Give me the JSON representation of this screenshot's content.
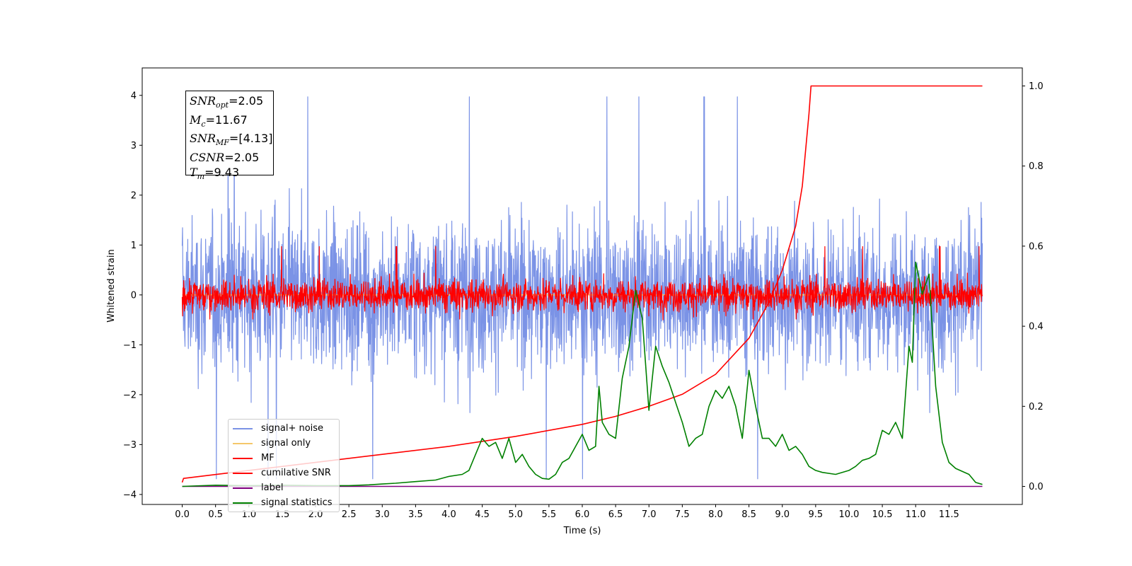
{
  "chart_data": {
    "type": "line",
    "xlabel": "Time (s)",
    "ylabel": "Whitened strain",
    "xlim": [
      -0.6,
      12.6
    ],
    "ylim_left": [
      -4.2,
      4.55
    ],
    "ylim_right": [
      -0.045,
      1.045
    ],
    "x_ticks": [
      "0.0",
      "0.5",
      "1.0",
      "1.5",
      "2.0",
      "2.5",
      "3.0",
      "3.5",
      "4.0",
      "4.5",
      "5.0",
      "5.5",
      "6.0",
      "6.5",
      "7.0",
      "7.5",
      "8.0",
      "8.5",
      "9.0",
      "9.5",
      "10.0",
      "10.5",
      "11.0",
      "11.5"
    ],
    "y_ticks_left": [
      "4",
      "3",
      "2",
      "1",
      "0",
      "−1",
      "−2",
      "−3",
      "−4"
    ],
    "y_ticks_right": [
      "1.0",
      "0.8",
      "0.6",
      "0.4",
      "0.2",
      "0.0"
    ],
    "annotations": [
      {
        "sym": "SNR",
        "sub": "opt",
        "val": "=2.05"
      },
      {
        "sym": "M",
        "sub": "c",
        "val": "=11.67"
      },
      {
        "sym": "SNR",
        "sub": "MF",
        "val": "=[4.13]"
      },
      {
        "sym": "CSNR",
        "sub": "",
        "val": "=2.05"
      },
      {
        "sym": "T",
        "sub": "m",
        "val": "=9.43"
      }
    ],
    "legend": {
      "placement": "lower-left",
      "entries": [
        {
          "name": "signal+ noise",
          "color": "#7b93e6"
        },
        {
          "name": "signal only",
          "color": "#f5c76a"
        },
        {
          "name": "MF",
          "color": "#ff0000"
        },
        {
          "name": "cumilative SNR",
          "color": "#ff0000"
        },
        {
          "name": "label",
          "color": "#800080"
        },
        {
          "name": "signal statistics",
          "color": "#008000"
        }
      ]
    },
    "series": [
      {
        "name": "signal+ noise",
        "axis": "left",
        "color": "#7b93e6",
        "kind": "noise",
        "x_range": [
          0.0,
          12.0
        ],
        "y_range": [
          -3.8,
          4.18
        ],
        "typical_amplitude": 1.9
      },
      {
        "name": "signal only",
        "axis": "left",
        "color": "#f5c76a",
        "x": [
          0.0,
          12.0
        ],
        "y": [
          0.0,
          0.0
        ]
      },
      {
        "name": "MF",
        "axis": "left",
        "color": "#ff0000",
        "kind": "noise",
        "x_range": [
          0.0,
          12.0
        ],
        "y_range": [
          -0.5,
          1.02
        ],
        "typical_amplitude": 0.42
      },
      {
        "name": "cumilative SNR",
        "axis": "right",
        "color": "#ff0000",
        "x": [
          0.0,
          0.02,
          1.0,
          2.0,
          3.0,
          4.0,
          5.0,
          6.0,
          6.5,
          7.0,
          7.5,
          8.0,
          8.5,
          8.8,
          9.0,
          9.2,
          9.3,
          9.4,
          9.43,
          12.0
        ],
        "y": [
          0.01,
          0.02,
          0.04,
          0.06,
          0.08,
          0.1,
          0.125,
          0.155,
          0.175,
          0.2,
          0.23,
          0.28,
          0.37,
          0.46,
          0.54,
          0.65,
          0.75,
          0.93,
          1.0,
          1.0
        ]
      },
      {
        "name": "label",
        "axis": "right",
        "color": "#800080",
        "x": [
          0.0,
          12.0
        ],
        "y": [
          0.0,
          0.0
        ]
      },
      {
        "name": "signal statistics",
        "axis": "right",
        "color": "#008000",
        "x": [
          0.0,
          0.5,
          1.0,
          1.5,
          2.0,
          2.5,
          2.8,
          3.0,
          3.2,
          3.5,
          3.8,
          4.0,
          4.2,
          4.3,
          4.4,
          4.5,
          4.6,
          4.7,
          4.8,
          4.9,
          5.0,
          5.1,
          5.2,
          5.3,
          5.4,
          5.5,
          5.6,
          5.7,
          5.8,
          5.9,
          6.0,
          6.1,
          6.2,
          6.25,
          6.3,
          6.4,
          6.5,
          6.6,
          6.7,
          6.8,
          6.9,
          7.0,
          7.1,
          7.2,
          7.3,
          7.4,
          7.5,
          7.6,
          7.7,
          7.8,
          7.9,
          8.0,
          8.1,
          8.2,
          8.3,
          8.4,
          8.5,
          8.6,
          8.7,
          8.8,
          8.9,
          9.0,
          9.1,
          9.2,
          9.3,
          9.4,
          9.5,
          9.6,
          9.8,
          10.0,
          10.1,
          10.2,
          10.3,
          10.4,
          10.5,
          10.6,
          10.7,
          10.8,
          10.9,
          10.95,
          11.0,
          11.1,
          11.2,
          11.3,
          11.4,
          11.5,
          11.6,
          11.8,
          11.9,
          12.0
        ],
        "y": [
          0.0,
          0.003,
          0.002,
          0.003,
          0.002,
          0.002,
          0.004,
          0.006,
          0.008,
          0.012,
          0.016,
          0.025,
          0.03,
          0.04,
          0.08,
          0.12,
          0.1,
          0.11,
          0.07,
          0.12,
          0.06,
          0.08,
          0.05,
          0.03,
          0.02,
          0.018,
          0.03,
          0.06,
          0.07,
          0.1,
          0.13,
          0.09,
          0.1,
          0.25,
          0.16,
          0.13,
          0.12,
          0.27,
          0.35,
          0.49,
          0.42,
          0.19,
          0.35,
          0.3,
          0.26,
          0.21,
          0.16,
          0.1,
          0.12,
          0.13,
          0.2,
          0.24,
          0.22,
          0.25,
          0.2,
          0.12,
          0.29,
          0.2,
          0.12,
          0.12,
          0.1,
          0.13,
          0.09,
          0.1,
          0.08,
          0.05,
          0.04,
          0.035,
          0.03,
          0.04,
          0.05,
          0.065,
          0.07,
          0.08,
          0.14,
          0.13,
          0.16,
          0.12,
          0.35,
          0.31,
          0.56,
          0.48,
          0.53,
          0.25,
          0.11,
          0.06,
          0.045,
          0.03,
          0.01,
          0.005
        ]
      }
    ]
  }
}
